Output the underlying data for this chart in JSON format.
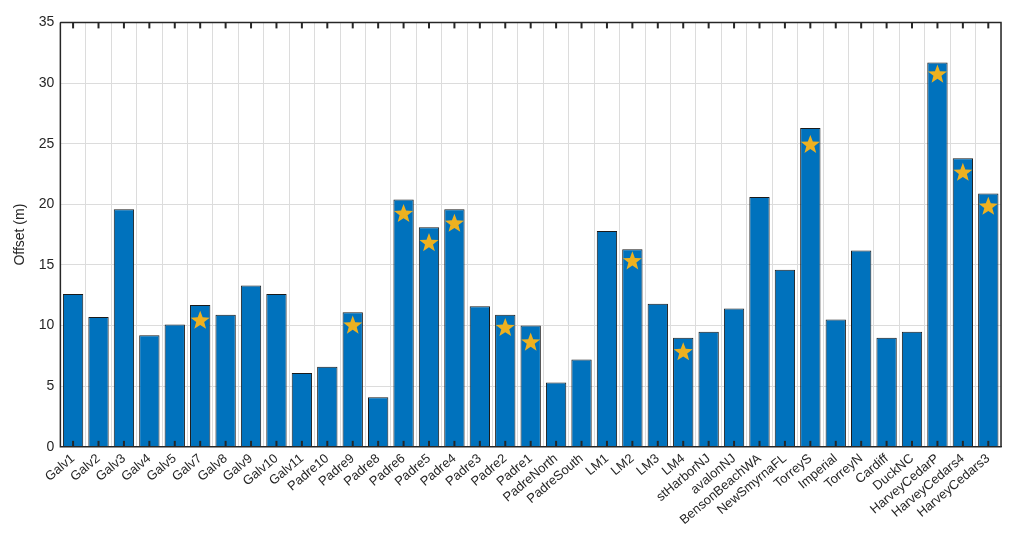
{
  "chart_data": {
    "type": "bar",
    "ylabel": "Offset (m)",
    "categories": [
      "Galv1",
      "Galv2",
      "Galv3",
      "Galv4",
      "Galv5",
      "Galv7",
      "Galv8",
      "Galv9",
      "Galv10",
      "Galv11",
      "Padre10",
      "Padre9",
      "Padre8",
      "Padre6",
      "Padre5",
      "Padre4",
      "Padre3",
      "Padre2",
      "Padre1",
      "PadreNorth",
      "PadreSouth",
      "LM1",
      "LM2",
      "LM3",
      "LM4",
      "stHarborNJ",
      "avalonNJ",
      "BensonBeachWA",
      "NewSmyrnaFL",
      "TorreyS",
      "Imperial",
      "TorreyN",
      "Cardiff",
      "DuckNC",
      "HarveyCedarP",
      "HarveyCedars4",
      "HarveyCedars3"
    ],
    "series": [
      {
        "color": "#0072bd",
        "values": [
          12.6,
          10.7,
          19.6,
          9.2,
          10.1,
          11.7,
          10.9,
          13.3,
          12.6,
          6.1,
          6.6,
          11.1,
          4.1,
          20.4,
          18.1,
          19.6,
          11.6,
          10.9,
          10.0,
          5.3,
          7.2,
          17.8,
          16.3,
          11.8,
          9.0,
          9.5,
          11.4,
          20.6,
          14.6,
          26.3,
          10.5,
          16.2,
          9.0,
          9.5,
          31.7,
          23.8,
          20.9
        ]
      },
      {
        "type": "scatter",
        "color": "#edb120",
        "marker": "star",
        "x": [
          "Galv7",
          "Padre9",
          "Padre6",
          "Padre5",
          "Padre4",
          "Padre2",
          "Padre1",
          "LM2",
          "LM4",
          "TorreyS",
          "HarveyCedarP",
          "HarveyCedars4",
          "HarveyCedars3"
        ],
        "values": [
          10.4,
          10.0,
          19.2,
          16.8,
          18.4,
          9.8,
          8.6,
          15.3,
          7.8,
          24.9,
          30.7,
          22.6,
          19.8
        ]
      }
    ],
    "ylim": [
      0,
      35
    ],
    "yticks": [
      0,
      5,
      10,
      15,
      20,
      25,
      30,
      35
    ],
    "grid": true,
    "legend": false
  }
}
